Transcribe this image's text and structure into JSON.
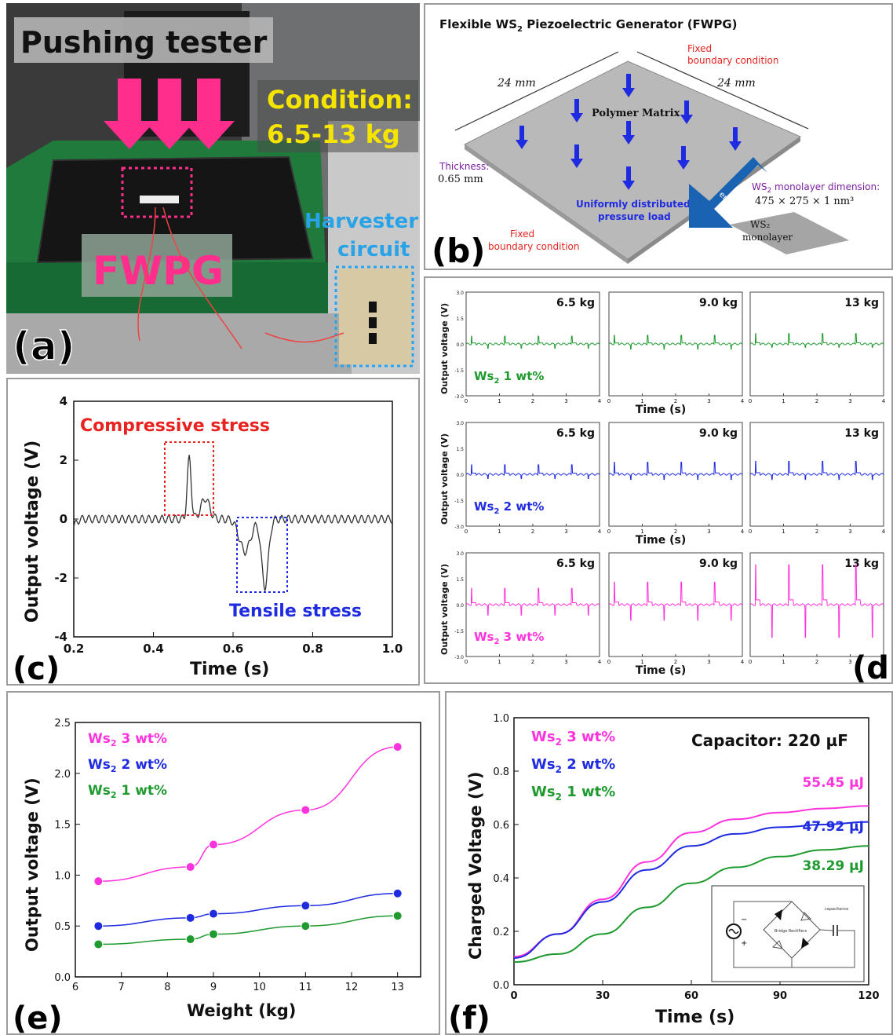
{
  "panel_labels": {
    "a": "(a)",
    "b": "(b)",
    "c": "(c)",
    "d": "(d)",
    "e": "(e)",
    "f": "(f)"
  },
  "panel_a": {
    "title": "Pushing tester",
    "condition_line1": "Condition:",
    "condition_line2": "6.5-13 kg",
    "device_label": "FWPG",
    "harvester_line1": "Harvester",
    "harvester_line2": "circuit",
    "colors": {
      "arrow": "#ff2d8c",
      "condition": "#f5e400",
      "device": "#ff2d8c",
      "harvester": "#29a3e8",
      "bench": "#1f7a3c"
    }
  },
  "panel_b": {
    "title_pre": "Flexible WS",
    "title_sub": "2",
    "title_post": " Piezoelectric Generator (FWPG)",
    "dim_left": "24 mm",
    "dim_right": "24 mm",
    "fixed_top_1": "Fixed",
    "fixed_top_2": "boundary condition",
    "fixed_bottom_1": "Fixed",
    "fixed_bottom_2": "boundary condition",
    "polymer": "Polymer Matrix",
    "thickness_label": "Thickness:",
    "thickness_value": "0.65 mm",
    "load_1": "Uniformly distributed",
    "load_2": "pressure load",
    "embedded": "embedded",
    "mono_dim_pre": "WS",
    "mono_dim_sub": "2",
    "mono_dim_post": " monolayer dimension:",
    "mono_dim_value": "475 × 275 × 1 nm³",
    "mono_label_1": "WS₂",
    "mono_label_2": "monolayer"
  },
  "chart_data": [
    {
      "id": "c",
      "type": "line",
      "xlabel": "Time (s)",
      "ylabel": "Output voltage (V)",
      "xlim": [
        0.2,
        1.0
      ],
      "ylim": [
        -4,
        4
      ],
      "xticks": [
        0.2,
        0.4,
        0.6,
        0.8,
        1.0
      ],
      "xtick_labels": [
        "0.2",
        "0.4",
        "0.6",
        "0.8",
        "1.0"
      ],
      "yticks": [
        -4,
        -2,
        0,
        2,
        4
      ],
      "annotations": [
        {
          "text": "Compressive stress",
          "color": "#e8231f"
        },
        {
          "text": "Tensile stress",
          "color": "#1f2be0"
        }
      ],
      "series": [
        {
          "color": "#333333",
          "baseline_amplitude": 0.13,
          "ripple_period_s": 0.0167,
          "peak_pos": {
            "t": 0.49,
            "v": 2.07
          },
          "peak_shoulder": {
            "t": 0.53,
            "v": 0.7
          },
          "peak_neg": {
            "t": 0.68,
            "v": -2.3
          },
          "neg_shoulder": {
            "t": 0.63,
            "v": -1.1
          }
        }
      ]
    },
    {
      "id": "d",
      "type": "line",
      "xlabel": "Time (s)",
      "ylabel": "Output voltage (V)",
      "xlim": [
        0,
        4
      ],
      "ylim": [
        -3.0,
        3.0
      ],
      "ytick_labels": [
        "3.0",
        "1.5",
        "0.0",
        "-1.5",
        "-3.0"
      ],
      "xtick_labels": [
        "0",
        "1",
        "2",
        "3",
        "4"
      ],
      "weights": [
        "6.5 kg",
        "9.0 kg",
        "13 kg"
      ],
      "rows": [
        {
          "label_pre": "Ws",
          "label_sub": "2",
          "label_post": " 1 wt%",
          "color": "#1e9a2e",
          "pos_peaks": [
            0.45,
            0.5,
            0.6
          ],
          "neg_peaks": [
            0.25,
            0.3,
            0.2
          ]
        },
        {
          "label_pre": "Ws",
          "label_sub": "2",
          "label_post": " 2 wt%",
          "color": "#1f2be0",
          "pos_peaks": [
            0.55,
            0.7,
            0.75
          ],
          "neg_peaks": [
            0.25,
            0.3,
            0.3
          ]
        },
        {
          "label_pre": "Ws",
          "label_sub": "2",
          "label_post": " 3 wt%",
          "color": "#ff33dd",
          "pos_peaks": [
            0.95,
            1.3,
            2.3
          ],
          "neg_peaks": [
            0.6,
            0.9,
            1.9
          ]
        }
      ]
    },
    {
      "id": "e",
      "type": "scatter",
      "xlabel": "Weight (kg)",
      "ylabel": "Output voltage (V)",
      "xlim": [
        6,
        13.5
      ],
      "ylim": [
        0.0,
        2.5
      ],
      "xticks": [
        6,
        7,
        8,
        9,
        10,
        11,
        12,
        13
      ],
      "yticks": [
        0.0,
        0.5,
        1.0,
        1.5,
        2.0,
        2.5
      ],
      "ytick_labels": [
        "0.0",
        "0.5",
        "1.0",
        "1.5",
        "2.0",
        "2.5"
      ],
      "legend": "top-left",
      "x": [
        6.5,
        8.5,
        9,
        11,
        13
      ],
      "series": [
        {
          "name_pre": "Ws",
          "name_sub": "2",
          "name_post": " 3 wt%",
          "color": "#ff33dd",
          "values": [
            0.94,
            1.08,
            1.3,
            1.64,
            2.26
          ]
        },
        {
          "name_pre": "Ws",
          "name_sub": "2",
          "name_post": " 2 wt%",
          "color": "#1f2be0",
          "values": [
            0.5,
            0.58,
            0.62,
            0.7,
            0.82
          ]
        },
        {
          "name_pre": "Ws",
          "name_sub": "2",
          "name_post": " 1 wt%",
          "color": "#1e9a2e",
          "values": [
            0.32,
            0.37,
            0.42,
            0.5,
            0.6
          ]
        }
      ]
    },
    {
      "id": "f",
      "type": "line",
      "xlabel": "Time (s)",
      "ylabel": "Charged Voltage (V)",
      "xlim": [
        0,
        120
      ],
      "ylim": [
        0.0,
        1.0
      ],
      "xticks": [
        0,
        30,
        60,
        90,
        120
      ],
      "yticks": [
        0.0,
        0.2,
        0.4,
        0.6,
        0.8,
        1.0
      ],
      "ytick_labels": [
        "0.0",
        "0.2",
        "0.4",
        "0.6",
        "0.8",
        "1.0"
      ],
      "capacitor_label": "Capacitor: 220 µF",
      "legend": "top-left",
      "inset_labels": {
        "rectifier": "Bridge Rectifiers",
        "cap": "capacitance",
        "minus": "−",
        "plus": "+"
      },
      "series": [
        {
          "name_pre": "Ws",
          "name_sub": "2",
          "name_post": " 3 wt%",
          "color": "#ff33dd",
          "energy": "55.45 µJ",
          "points": [
            [
              0,
              0.105
            ],
            [
              15,
              0.19
            ],
            [
              30,
              0.32
            ],
            [
              45,
              0.46
            ],
            [
              60,
              0.57
            ],
            [
              75,
              0.62
            ],
            [
              90,
              0.645
            ],
            [
              105,
              0.66
            ],
            [
              120,
              0.67
            ]
          ]
        },
        {
          "name_pre": "Ws",
          "name_sub": "2",
          "name_post": " 2 wt%",
          "color": "#1f2be0",
          "energy": "47.92 µJ",
          "points": [
            [
              0,
              0.1
            ],
            [
              15,
              0.19
            ],
            [
              30,
              0.31
            ],
            [
              45,
              0.43
            ],
            [
              60,
              0.52
            ],
            [
              75,
              0.565
            ],
            [
              90,
              0.59
            ],
            [
              105,
              0.6
            ],
            [
              120,
              0.61
            ]
          ]
        },
        {
          "name_pre": "Ws",
          "name_sub": "2",
          "name_post": " 1 wt%",
          "color": "#1e9a2e",
          "energy": "38.29 µJ",
          "points": [
            [
              0,
              0.085
            ],
            [
              15,
              0.115
            ],
            [
              30,
              0.19
            ],
            [
              45,
              0.29
            ],
            [
              60,
              0.38
            ],
            [
              75,
              0.44
            ],
            [
              90,
              0.48
            ],
            [
              105,
              0.505
            ],
            [
              120,
              0.52
            ]
          ]
        }
      ]
    }
  ]
}
